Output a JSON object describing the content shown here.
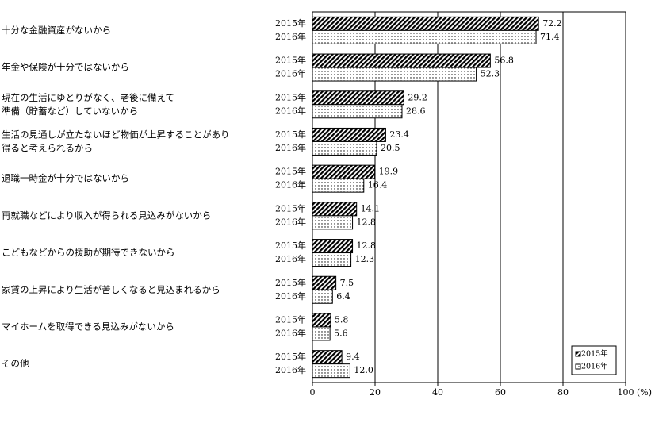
{
  "chart_data": {
    "type": "bar",
    "orientation": "horizontal",
    "categories": [
      [
        "十分な金融資産がないから"
      ],
      [
        "年金や保険が十分ではないから"
      ],
      [
        "現在の生活にゆとりがなく、老後に備えて",
        "準備（貯蓄など）していないから"
      ],
      [
        "生活の見通しが立たないほど物価が上昇することがあり",
        "得ると考えられるから"
      ],
      [
        "退職一時金が十分ではないから"
      ],
      [
        "再就職などにより収入が得られる見込みがないから"
      ],
      [
        "こどもなどからの援助が期待できないから"
      ],
      [
        "家賃の上昇により生活が苦しくなると見込まれるから"
      ],
      [
        "マイホームを取得できる見込みがないから"
      ],
      [
        "その他"
      ]
    ],
    "series": [
      {
        "name": "2015年",
        "color": "#000000",
        "values": [
          72.2,
          56.8,
          29.2,
          23.4,
          19.9,
          14.1,
          12.8,
          7.5,
          5.8,
          9.4
        ],
        "value_labels": [
          "72.2",
          "56.8",
          "29.2",
          "23.4",
          "19.9",
          "14.1",
          "12.8",
          "7.5",
          "5.8",
          "9.4"
        ]
      },
      {
        "name": "2016年",
        "color": "#000000",
        "values": [
          71.4,
          52.3,
          28.6,
          20.5,
          16.4,
          12.8,
          12.3,
          6.4,
          5.6,
          12.0
        ],
        "value_labels": [
          "71.4",
          "52.3",
          "28.6",
          "20.5",
          "16.4",
          "12.8",
          "12.3",
          "6.4",
          "5.6",
          "12.0"
        ]
      }
    ],
    "xlim": [
      0,
      100
    ],
    "xticks": [
      0,
      20,
      40,
      60,
      80,
      100
    ],
    "x_unit": "(%)",
    "grid": true,
    "legend": "lower right"
  }
}
